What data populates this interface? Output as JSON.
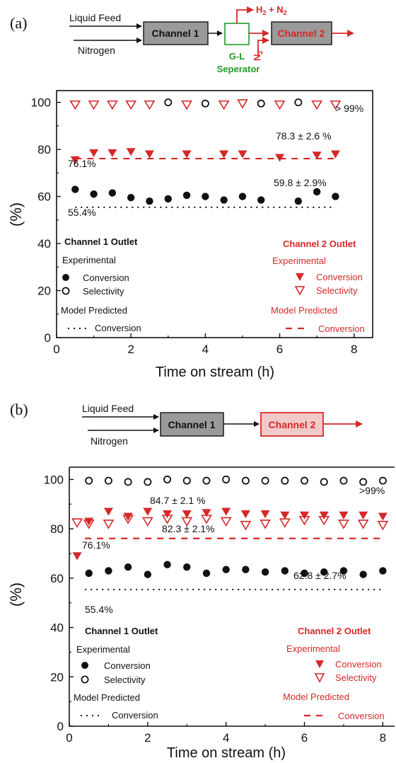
{
  "colors": {
    "black": "#111111",
    "red": "#d62828",
    "box_fill": "#9a9a9a",
    "box_fill_b2": "#f2c9c9",
    "green": "#1f9a2a"
  },
  "panel_a": {
    "label": "(a)",
    "scheme": {
      "liquid_feed": "Liquid Feed",
      "nitrogen": "Nitrogen",
      "channel1": "Channel 1",
      "channel2": "Channel 2",
      "separator_top": "G-L",
      "separator_bottom": "Seperator",
      "h2n2": "H",
      "h2n2_sub": "2",
      "h2n2_rest": " + N",
      "h2n2_sub2": "2",
      "n2": "N",
      "n2_sub": "2"
    },
    "legend": {
      "ch1_title": "Channel 1 Outlet",
      "ch1_exp": "Experimental",
      "ch1_conv": "Conversion",
      "ch1_sel": "Selectivity",
      "ch1_model": "Model Predicted",
      "ch1_model_conv": "Conversion",
      "ch2_title": "Channel 2 Outlet",
      "ch2_exp": "Experimental",
      "ch2_conv": "Conversion",
      "ch2_sel": "Selectivity",
      "ch2_model": "Model Predicted",
      "ch2_model_conv": "Conversion"
    },
    "annotations": {
      "sel_note": "> 99%",
      "ch2_note": "78.3 ± 2.6 %",
      "ch2_model_note": "76.1%",
      "ch1_note": "59.8 ± 2.9%",
      "ch1_model_note": "55.4%"
    }
  },
  "panel_b": {
    "label": "(b)",
    "scheme": {
      "liquid_feed": "Liquid Feed",
      "nitrogen": "Nitrogen",
      "channel1": "Channel 1",
      "channel2": "Channel 2"
    },
    "legend": {
      "ch1_title": "Channel 1 Outlet",
      "ch1_exp": "Experimental",
      "ch1_conv": "Conversion",
      "ch1_sel": "Selectivity",
      "ch1_model": "Model Predicted",
      "ch1_model_conv": "Conversion",
      "ch2_title": "Channel 2 Outlet",
      "ch2_exp": "Experimental",
      "ch2_conv": "Conversion",
      "ch2_sel": "Selectivity",
      "ch2_model": "Model Predicted",
      "ch2_model_conv": "Conversion"
    },
    "annotations": {
      "sel_note": ">99%",
      "ch2_conv_note": "84.7 ± 2.1 %",
      "ch2_sel_note": "82.3 ± 2.1%",
      "ch2_model_note": "76.1%",
      "ch1_note": "62.8 ± 2.7%",
      "ch1_model_note": "55.4%"
    }
  },
  "chart_data": [
    {
      "type": "scatter",
      "xlabel": "Time on stream (h)",
      "ylabel": "(%)",
      "xlim": [
        0,
        8.5
      ],
      "ylim": [
        0,
        105
      ],
      "xticks": [
        "0",
        "2",
        "4",
        "6",
        "8"
      ],
      "yticks": [
        "0",
        "20",
        "40",
        "60",
        "80",
        "100"
      ],
      "series": [
        {
          "key": "ch1_conv",
          "marker": "filled-circle",
          "color": "#111111",
          "x": [
            0.5,
            1.0,
            1.5,
            2.0,
            2.5,
            3.0,
            3.5,
            4.0,
            4.5,
            5.0,
            5.5,
            6.5,
            7.0,
            7.5
          ],
          "y": [
            63,
            61,
            61.5,
            59.5,
            58,
            59,
            60.5,
            60,
            58.5,
            60,
            58.5,
            58,
            62,
            60
          ]
        },
        {
          "key": "ch1_sel",
          "marker": "open-circle",
          "color": "#111111",
          "x": [
            3.0,
            4.0,
            5.5,
            6.5
          ],
          "y": [
            100,
            99.5,
            99.5,
            100
          ]
        },
        {
          "key": "ch2_conv",
          "marker": "filled-triangle",
          "color": "#d62828",
          "x": [
            0.5,
            1.0,
            1.5,
            2.0,
            2.5,
            3.5,
            4.5,
            5.0,
            6.0,
            7.0,
            7.5
          ],
          "y": [
            75.5,
            78.5,
            78.5,
            79,
            78,
            78,
            78,
            78,
            76.5,
            77.5,
            78
          ]
        },
        {
          "key": "ch2_sel",
          "marker": "open-triangle",
          "color": "#d62828",
          "x": [
            0.5,
            1.0,
            1.5,
            2.0,
            2.5,
            3.5,
            4.5,
            5.0,
            6.0,
            7.0,
            7.5
          ],
          "y": [
            99,
            99,
            99,
            99,
            99,
            99,
            99,
            99.5,
            99,
            99,
            99
          ]
        },
        {
          "key": "ch1_model",
          "marker": "dotted-line",
          "color": "#111111",
          "x": [
            0.5,
            7.5
          ],
          "y": [
            55.4,
            55.4
          ]
        },
        {
          "key": "ch2_model",
          "marker": "dashed-line",
          "color": "#d62828",
          "x": [
            0.5,
            7.5
          ],
          "y": [
            76.1,
            76.1
          ]
        }
      ]
    },
    {
      "type": "scatter",
      "xlabel": "Time on stream (h)",
      "ylabel": "(%)",
      "xlim": [
        0,
        8.3
      ],
      "ylim": [
        0,
        105
      ],
      "xticks": [
        "0",
        "2",
        "4",
        "6",
        "8"
      ],
      "yticks": [
        "0",
        "20",
        "40",
        "60",
        "80",
        "100"
      ],
      "series": [
        {
          "key": "ch1_conv",
          "marker": "filled-circle",
          "color": "#111111",
          "x": [
            0.5,
            1.0,
            1.5,
            2.0,
            2.5,
            3.0,
            3.5,
            4.0,
            4.5,
            5.0,
            5.5,
            6.0,
            6.5,
            7.0,
            7.5,
            8.0
          ],
          "y": [
            62,
            63,
            64.5,
            61.5,
            65.5,
            64.5,
            62,
            63.5,
            63.5,
            62.5,
            63,
            62,
            62.5,
            63,
            61.5,
            63
          ]
        },
        {
          "key": "ch1_sel",
          "marker": "open-circle",
          "color": "#111111",
          "x": [
            0.5,
            1.0,
            1.5,
            2.0,
            2.5,
            3.0,
            3.5,
            4.0,
            4.5,
            5.0,
            5.5,
            6.0,
            6.5,
            7.0,
            7.5,
            8.0
          ],
          "y": [
            99.5,
            99.5,
            99,
            99,
            100,
            99.5,
            99.5,
            100,
            99.5,
            99.5,
            99.5,
            99.5,
            99,
            99.5,
            99,
            99.5
          ]
        },
        {
          "key": "ch2_conv",
          "marker": "filled-triangle",
          "color": "#d62828",
          "x": [
            0.2,
            0.5,
            1.0,
            1.5,
            2.0,
            2.5,
            3.0,
            3.5,
            4.0,
            4.5,
            5.0,
            5.5,
            6.0,
            6.5,
            7.0,
            7.5,
            8.0
          ],
          "y": [
            69,
            83,
            87,
            85,
            87,
            86,
            86,
            86.5,
            87,
            86,
            86,
            85.5,
            85.5,
            85.5,
            85.5,
            85.5,
            85
          ]
        },
        {
          "key": "ch2_sel",
          "marker": "open-triangle",
          "color": "#d62828",
          "x": [
            0.2,
            0.5,
            1.0,
            1.5,
            2.0,
            2.5,
            3.0,
            3.5,
            4.0,
            4.5,
            5.0,
            5.5,
            6.0,
            6.5,
            7.0,
            7.5,
            8.0
          ],
          "y": [
            82.5,
            82,
            82,
            84,
            83,
            84,
            83,
            84,
            83,
            81.5,
            82,
            82.5,
            83.5,
            83.5,
            82,
            82,
            81.5
          ]
        },
        {
          "key": "ch1_model",
          "marker": "dotted-line",
          "color": "#111111",
          "x": [
            0.4,
            8.0
          ],
          "y": [
            55.4,
            55.4
          ]
        },
        {
          "key": "ch2_model",
          "marker": "dashed-line",
          "color": "#d62828",
          "x": [
            0.4,
            8.0
          ],
          "y": [
            76.1,
            76.1
          ]
        }
      ]
    }
  ]
}
